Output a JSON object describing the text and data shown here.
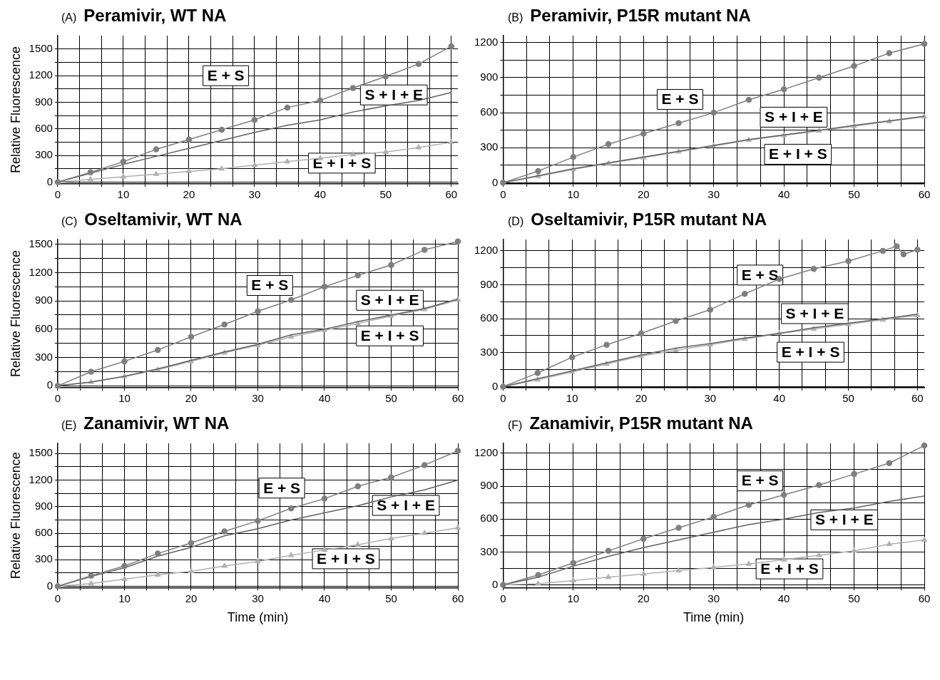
{
  "chart_data": [
    {
      "type": "line",
      "subtitle": "(A)",
      "title": "Peramivir, WT NA",
      "ylabel": "Relative Fluorescence",
      "grid": true,
      "line_style": "solid",
      "xlim": [
        0,
        61
      ],
      "ylim": [
        -20,
        1650
      ],
      "xticks": [
        0,
        {
          "value": 3.333,
          "label": null
        },
        {
          "value": 6.667,
          "label": null
        },
        10,
        {
          "value": 13.333,
          "label": null
        },
        {
          "value": 16.667,
          "label": null
        },
        20,
        {
          "value": 23.333,
          "label": null
        },
        {
          "value": 26.667,
          "label": null
        },
        30,
        {
          "value": 33.333,
          "label": null
        },
        {
          "value": 36.667,
          "label": null
        },
        40,
        {
          "value": 43.333,
          "label": null
        },
        {
          "value": 46.667,
          "label": null
        },
        50,
        {
          "value": 53.333,
          "label": null
        },
        {
          "value": 56.667,
          "label": null
        },
        60
      ],
      "yticks": [
        0,
        {
          "value": 150,
          "label": null
        },
        300,
        {
          "value": 450,
          "label": null
        },
        600,
        {
          "value": 750,
          "label": null
        },
        900,
        {
          "value": 1050,
          "label": null
        },
        1200,
        {
          "value": 1350,
          "label": null
        },
        1500
      ],
      "x": [
        0,
        5,
        10,
        15,
        20,
        25,
        30,
        35,
        40,
        45,
        50,
        55,
        60
      ],
      "series": [
        {
          "name": "E + S",
          "color": "#7f7f7f",
          "marker": "circle",
          "values": [
            0,
            110,
            230,
            370,
            480,
            590,
            700,
            840,
            920,
            1060,
            1190,
            1330,
            1530
          ]
        },
        {
          "name": "S + I + E",
          "color": "#606060",
          "marker": "none",
          "values": [
            0,
            100,
            200,
            290,
            380,
            470,
            560,
            640,
            700,
            790,
            860,
            920,
            1010
          ]
        },
        {
          "name": "E + I + S",
          "color": "#b0b0b0",
          "marker": "triangle",
          "values": [
            0,
            30,
            60,
            90,
            120,
            150,
            190,
            230,
            270,
            310,
            340,
            390,
            450
          ]
        }
      ]
    },
    {
      "type": "line",
      "subtitle": "(B)",
      "title": "Peramivir, P15R mutant NA",
      "grid": true,
      "line_style": "solid",
      "xlim": [
        0,
        60
      ],
      "ylim": [
        -10,
        1260
      ],
      "xticks": [
        0,
        {
          "value": 3.333,
          "label": null
        },
        {
          "value": 6.667,
          "label": null
        },
        10,
        {
          "value": 13.333,
          "label": null
        },
        {
          "value": 16.667,
          "label": null
        },
        20,
        {
          "value": 23.333,
          "label": null
        },
        {
          "value": 26.667,
          "label": null
        },
        30,
        {
          "value": 33.333,
          "label": null
        },
        {
          "value": 36.667,
          "label": null
        },
        40,
        {
          "value": 43.333,
          "label": null
        },
        {
          "value": 46.667,
          "label": null
        },
        50,
        {
          "value": 53.333,
          "label": null
        },
        {
          "value": 56.667,
          "label": null
        },
        60
      ],
      "yticks": [
        0,
        {
          "value": 150,
          "label": null
        },
        300,
        {
          "value": 450,
          "label": null
        },
        600,
        {
          "value": 750,
          "label": null
        },
        900,
        {
          "value": 1050,
          "label": null
        },
        1200
      ],
      "x": [
        0,
        5,
        10,
        15,
        20,
        25,
        30,
        35,
        40,
        45,
        50,
        55,
        60
      ],
      "series": [
        {
          "name": "E + S",
          "color": "#7f7f7f",
          "marker": "circle",
          "values": [
            0,
            100,
            220,
            330,
            420,
            510,
            600,
            710,
            800,
            900,
            1000,
            1110,
            1190
          ]
        },
        {
          "name": "S + I + E",
          "color": "#606060",
          "marker": "none",
          "values": [
            0,
            60,
            120,
            170,
            220,
            270,
            320,
            370,
            410,
            450,
            490,
            530,
            570
          ]
        },
        {
          "name": "E + I + S",
          "color": "#b0b0b0",
          "marker": "triangle",
          "values": [
            0,
            55,
            115,
            165,
            215,
            265,
            315,
            365,
            405,
            445,
            485,
            525,
            565
          ]
        }
      ]
    },
    {
      "type": "line",
      "subtitle": "(C)",
      "title": "Oseltamivir, WT NA",
      "ylabel": "Relative Fluorescence",
      "grid": true,
      "line_style": "solid",
      "xlim": [
        0,
        60
      ],
      "ylim": [
        -20,
        1550
      ],
      "xticks": [
        0,
        {
          "value": 3.333,
          "label": null
        },
        {
          "value": 6.667,
          "label": null
        },
        10,
        {
          "value": 13.333,
          "label": null
        },
        {
          "value": 16.667,
          "label": null
        },
        20,
        {
          "value": 23.333,
          "label": null
        },
        {
          "value": 26.667,
          "label": null
        },
        30,
        {
          "value": 33.333,
          "label": null
        },
        {
          "value": 36.667,
          "label": null
        },
        40,
        {
          "value": 43.333,
          "label": null
        },
        {
          "value": 46.667,
          "label": null
        },
        50,
        {
          "value": 53.333,
          "label": null
        },
        {
          "value": 56.667,
          "label": null
        },
        60
      ],
      "yticks": [
        0,
        {
          "value": 150,
          "label": null
        },
        300,
        {
          "value": 450,
          "label": null
        },
        600,
        {
          "value": 750,
          "label": null
        },
        900,
        {
          "value": 1050,
          "label": null
        },
        1200,
        {
          "value": 1350,
          "label": null
        },
        1500
      ],
      "x": [
        0,
        5,
        10,
        15,
        20,
        25,
        30,
        35,
        40,
        45,
        50,
        55,
        60
      ],
      "series": [
        {
          "name": "E + S",
          "color": "#7f7f7f",
          "marker": "circle",
          "values": [
            0,
            150,
            260,
            380,
            520,
            650,
            790,
            910,
            1050,
            1170,
            1280,
            1440,
            1530
          ]
        },
        {
          "name": "S + I + E",
          "color": "#606060",
          "marker": "none",
          "values": [
            0,
            40,
            100,
            180,
            270,
            360,
            440,
            540,
            600,
            680,
            750,
            820,
            920
          ]
        },
        {
          "name": "E + I + S",
          "color": "#b0b0b0",
          "marker": "triangle",
          "values": [
            0,
            40,
            100,
            170,
            260,
            350,
            430,
            520,
            590,
            660,
            740,
            810,
            910
          ]
        }
      ]
    },
    {
      "type": "line",
      "subtitle": "(D)",
      "title": "Oseltamivir, P15R mutant NA",
      "grid": true,
      "line_style": "solid",
      "xlim": [
        0,
        61
      ],
      "ylim": [
        -10,
        1300
      ],
      "xticks": [
        0,
        {
          "value": 3.333,
          "label": null
        },
        {
          "value": 6.667,
          "label": null
        },
        10,
        {
          "value": 13.333,
          "label": null
        },
        {
          "value": 16.667,
          "label": null
        },
        20,
        {
          "value": 23.333,
          "label": null
        },
        {
          "value": 26.667,
          "label": null
        },
        30,
        {
          "value": 33.333,
          "label": null
        },
        {
          "value": 36.667,
          "label": null
        },
        40,
        {
          "value": 43.333,
          "label": null
        },
        {
          "value": 46.667,
          "label": null
        },
        50,
        {
          "value": 53.333,
          "label": null
        },
        {
          "value": 56.667,
          "label": null
        },
        60
      ],
      "yticks": [
        0,
        {
          "value": 150,
          "label": null
        },
        300,
        {
          "value": 450,
          "label": null
        },
        600,
        {
          "value": 750,
          "label": null
        },
        900,
        {
          "value": 1050,
          "label": null
        },
        1200
      ],
      "x": [
        0,
        5,
        10,
        15,
        20,
        25,
        30,
        35,
        40,
        45,
        50,
        55,
        60
      ],
      "series": [
        {
          "name": "E + S",
          "color": "#7f7f7f",
          "marker": "circle",
          "x": [
            0,
            5,
            10,
            15,
            20,
            25,
            30,
            35,
            40,
            45,
            50,
            55,
            57,
            58,
            60
          ],
          "values": [
            0,
            120,
            260,
            370,
            470,
            580,
            680,
            820,
            950,
            1040,
            1110,
            1200,
            1240,
            1170,
            1210
          ]
        },
        {
          "name": "S + I + E",
          "color": "#606060",
          "marker": "none",
          "values": [
            0,
            70,
            140,
            210,
            280,
            340,
            380,
            430,
            470,
            520,
            560,
            600,
            640
          ]
        },
        {
          "name": "E + I + S",
          "color": "#b0b0b0",
          "marker": "triangle",
          "values": [
            0,
            60,
            130,
            200,
            270,
            320,
            370,
            420,
            470,
            510,
            550,
            590,
            630
          ]
        }
      ]
    },
    {
      "type": "line",
      "subtitle": "(E)",
      "title": "Zanamivir, WT NA",
      "ylabel": "Relative Fluorescence",
      "xlabel": "Time (min)",
      "grid": true,
      "line_style": "solid",
      "xlim": [
        0,
        60
      ],
      "ylim": [
        -15,
        1615
      ],
      "xticks": [
        0,
        {
          "value": 3.333,
          "label": null
        },
        {
          "value": 6.667,
          "label": null
        },
        10,
        {
          "value": 13.333,
          "label": null
        },
        {
          "value": 16.667,
          "label": null
        },
        20,
        {
          "value": 23.333,
          "label": null
        },
        {
          "value": 26.667,
          "label": null
        },
        30,
        {
          "value": 33.333,
          "label": null
        },
        {
          "value": 36.667,
          "label": null
        },
        40,
        {
          "value": 43.333,
          "label": null
        },
        {
          "value": 46.667,
          "label": null
        },
        50,
        {
          "value": 53.333,
          "label": null
        },
        {
          "value": 56.667,
          "label": null
        },
        60
      ],
      "yticks": [
        0,
        {
          "value": 150,
          "label": null
        },
        300,
        {
          "value": 450,
          "label": null
        },
        600,
        {
          "value": 750,
          "label": null
        },
        900,
        {
          "value": 1050,
          "label": null
        },
        1200,
        {
          "value": 1350,
          "label": null
        },
        1500
      ],
      "x": [
        0,
        5,
        10,
        15,
        20,
        25,
        30,
        35,
        40,
        45,
        50,
        55,
        60
      ],
      "series": [
        {
          "name": "E + S",
          "color": "#7f7f7f",
          "marker": "circle",
          "values": [
            0,
            120,
            230,
            370,
            490,
            620,
            740,
            880,
            990,
            1130,
            1230,
            1370,
            1530
          ]
        },
        {
          "name": "S + I + E",
          "color": "#606060",
          "marker": "none",
          "values": [
            0,
            110,
            210,
            340,
            440,
            570,
            650,
            750,
            830,
            910,
            1010,
            1090,
            1200
          ]
        },
        {
          "name": "E + I + S",
          "color": "#b0b0b0",
          "marker": "triangle",
          "values": [
            0,
            30,
            80,
            130,
            170,
            230,
            280,
            350,
            410,
            470,
            540,
            600,
            660
          ]
        }
      ]
    },
    {
      "type": "line",
      "subtitle": "(F)",
      "title": "Zanamivir, P15R mutant NA",
      "xlabel": "Time (min)",
      "grid": true,
      "line_style": "solid",
      "xlim": [
        0,
        60
      ],
      "ylim": [
        -25,
        1290
      ],
      "xticks": [
        0,
        {
          "value": 3.333,
          "label": null
        },
        {
          "value": 6.667,
          "label": null
        },
        10,
        {
          "value": 13.333,
          "label": null
        },
        {
          "value": 16.667,
          "label": null
        },
        20,
        {
          "value": 23.333,
          "label": null
        },
        {
          "value": 26.667,
          "label": null
        },
        30,
        {
          "value": 33.333,
          "label": null
        },
        {
          "value": 36.667,
          "label": null
        },
        40,
        {
          "value": 43.333,
          "label": null
        },
        {
          "value": 46.667,
          "label": null
        },
        50,
        {
          "value": 53.333,
          "label": null
        },
        {
          "value": 56.667,
          "label": null
        },
        60
      ],
      "yticks": [
        0,
        {
          "value": 150,
          "label": null
        },
        300,
        {
          "value": 450,
          "label": null
        },
        600,
        {
          "value": 750,
          "label": null
        },
        900,
        {
          "value": 1050,
          "label": null
        },
        1200
      ],
      "x": [
        0,
        5,
        10,
        15,
        20,
        25,
        30,
        35,
        40,
        45,
        50,
        55,
        60
      ],
      "series": [
        {
          "name": "E + S",
          "color": "#7f7f7f",
          "marker": "circle",
          "values": [
            0,
            90,
            200,
            310,
            420,
            520,
            620,
            730,
            820,
            910,
            1010,
            1110,
            1270
          ]
        },
        {
          "name": "S + I + E",
          "color": "#606060",
          "marker": "none",
          "values": [
            0,
            70,
            170,
            260,
            340,
            410,
            480,
            550,
            600,
            660,
            700,
            760,
            810
          ]
        },
        {
          "name": "E + I + S",
          "color": "#b0b0b0",
          "marker": "triangle",
          "values": [
            0,
            10,
            40,
            70,
            100,
            130,
            160,
            190,
            230,
            270,
            310,
            370,
            410
          ]
        }
      ]
    }
  ]
}
